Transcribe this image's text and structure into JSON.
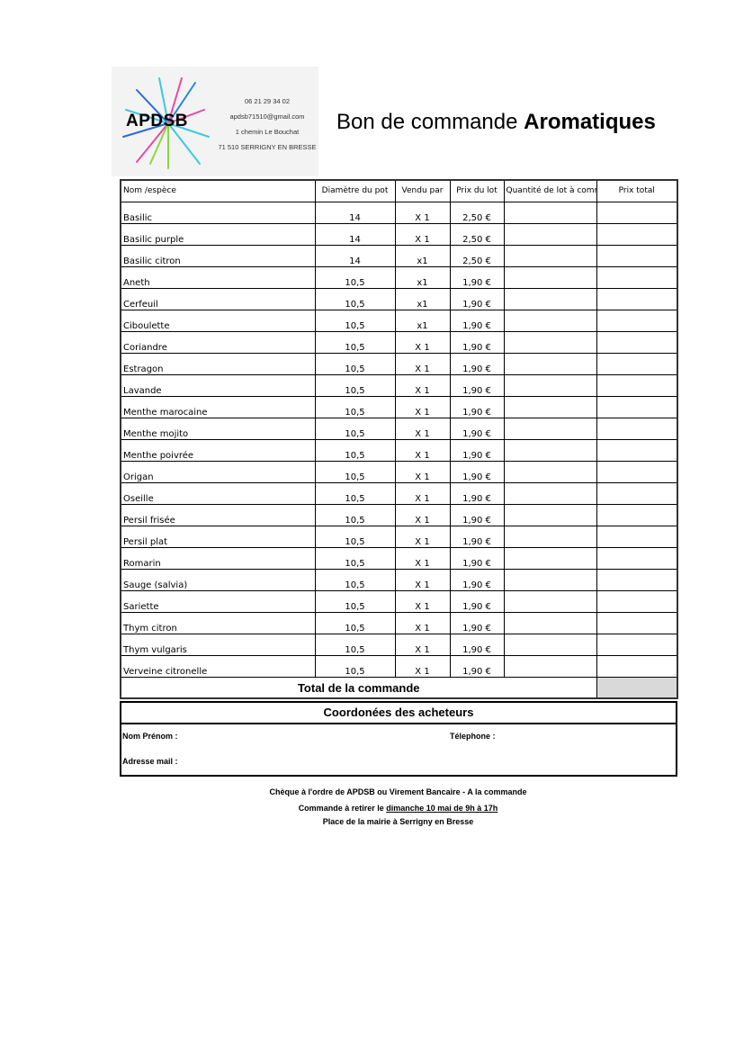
{
  "logo": {
    "brand": "APDSB",
    "phone": "06 21 29 34 02",
    "email": "apdsb71510@gmail.com",
    "address1": "1 chemin Le Bouchat",
    "address2": "71 510 SERRIGNY EN BRESSE"
  },
  "title": {
    "prefix": "Bon de commande",
    "bold": "Aromatiques"
  },
  "table": {
    "headers": [
      "Nom /espèce",
      "Diamètre du pot",
      "Vendu par",
      "Prix du lot",
      "Quantité de lot à commander",
      "Prix total"
    ],
    "rows": [
      [
        "Basilic",
        "14",
        "X 1",
        "2,50 €"
      ],
      [
        "Basilic purple",
        "14",
        "X 1",
        "2,50 €"
      ],
      [
        "Basilic citron",
        "14",
        "x1",
        "2,50 €"
      ],
      [
        "Aneth",
        "10,5",
        "x1",
        "1,90 €"
      ],
      [
        "Cerfeuil",
        "10,5",
        "x1",
        "1,90 €"
      ],
      [
        "Ciboulette",
        "10,5",
        "x1",
        "1,90 €"
      ],
      [
        "Coriandre",
        "10,5",
        "X 1",
        "1,90 €"
      ],
      [
        "Estragon",
        "10,5",
        "X 1",
        "1,90 €"
      ],
      [
        "Lavande",
        "10,5",
        "X 1",
        "1,90 €"
      ],
      [
        "Menthe marocaine",
        "10,5",
        "X 1",
        "1,90 €"
      ],
      [
        "Menthe mojito",
        "10,5",
        "X 1",
        "1,90 €"
      ],
      [
        "Menthe poivrée",
        "10,5",
        "X 1",
        "1,90 €"
      ],
      [
        "Origan",
        "10,5",
        "X 1",
        "1,90 €"
      ],
      [
        "Oseille",
        "10,5",
        "X 1",
        "1,90 €"
      ],
      [
        "Persil frisée",
        "10,5",
        "X 1",
        "1,90 €"
      ],
      [
        "Persil plat",
        "10,5",
        "X 1",
        "1,90 €"
      ],
      [
        "Romarin",
        "10,5",
        "X 1",
        "1,90 €"
      ],
      [
        "Sauge (salvia)",
        "10,5",
        "X 1",
        "1,90 €"
      ],
      [
        "Sariette",
        "10,5",
        "X 1",
        "1,90 €"
      ],
      [
        "Thym citron",
        "10,5",
        "X 1",
        "1,90 €"
      ],
      [
        "Thym vulgaris",
        "10,5",
        "X 1",
        "1,90 €"
      ],
      [
        "Verveine citronelle",
        "10,5",
        "X 1",
        "1,90 €"
      ]
    ],
    "total_label": "Total de la commande"
  },
  "buyers": {
    "header": "Coordonées des acheteurs",
    "name_label": "Nom Prénom :",
    "phone_label": "Télephone :",
    "email_label": "Adresse mail :"
  },
  "notes": {
    "payment": "Chèque à l'ordre de APDSB ou Virement Bancaire - A la commande",
    "pickup_prefix": "Commande à retirer le",
    "pickup_date": "dimanche 10 mai de 9h à 17h",
    "place": "Place de la mairie à Serrigny en Bresse"
  },
  "colors": {
    "total_cell": "#d9d9d9"
  }
}
